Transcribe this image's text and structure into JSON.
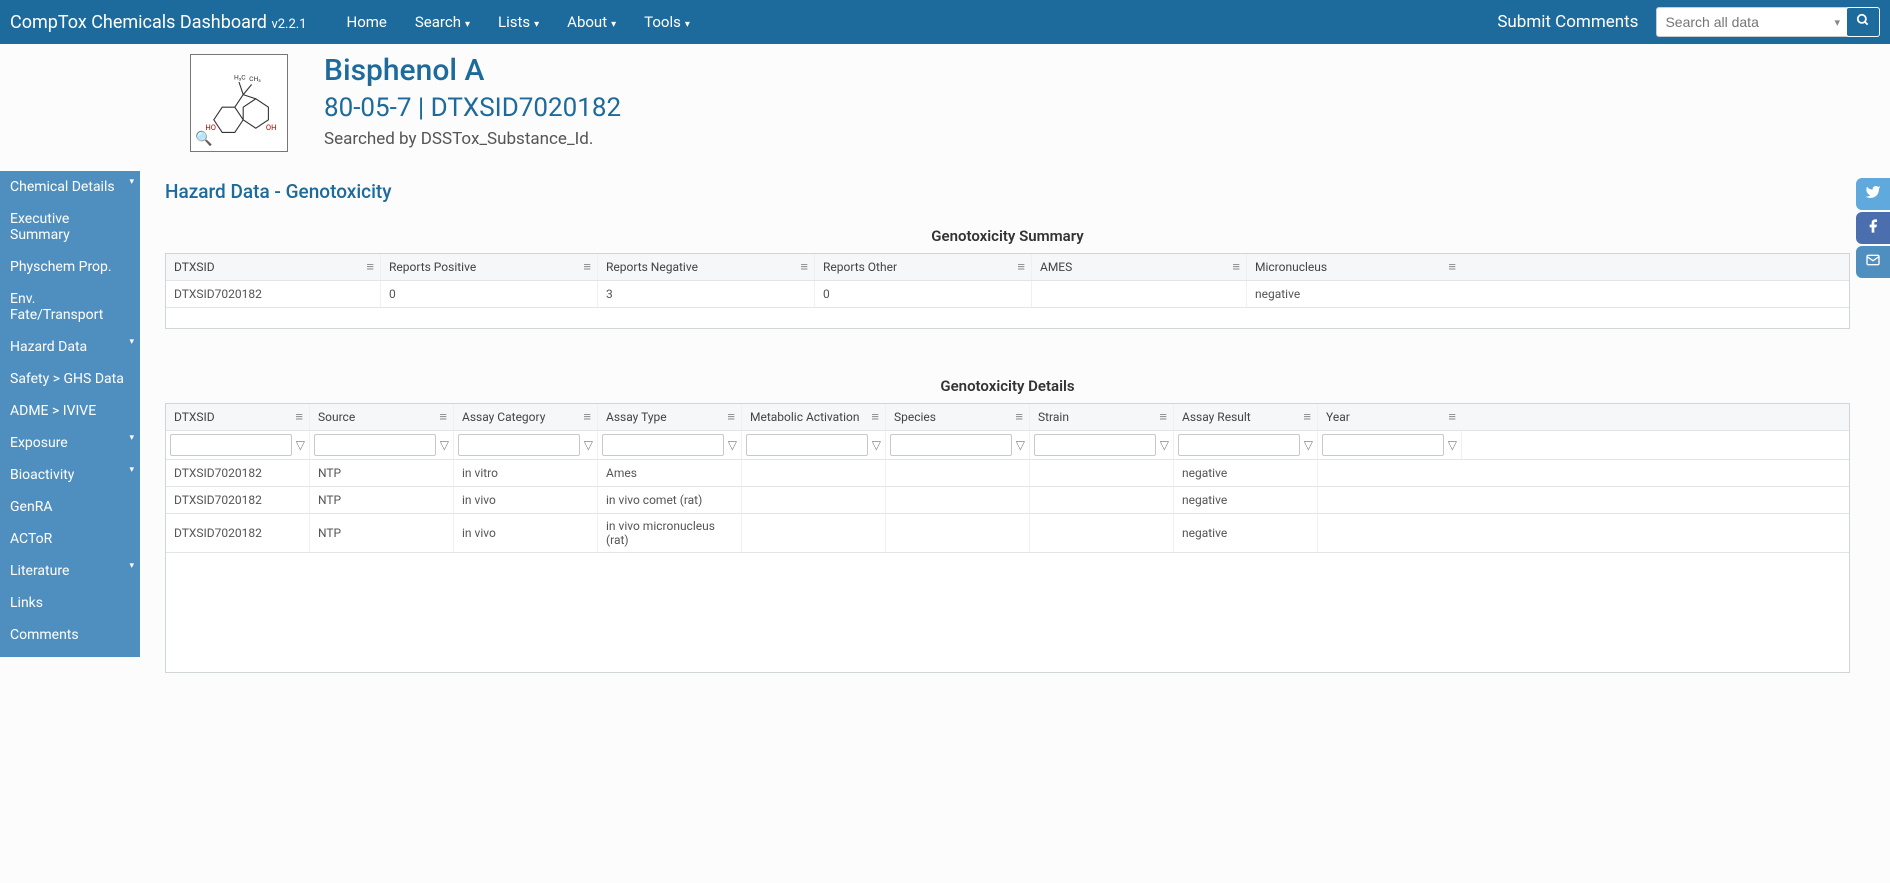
{
  "brand": {
    "title": "CompTox Chemicals Dashboard",
    "version": "v2.2.1"
  },
  "nav": {
    "items": [
      {
        "label": "Home",
        "caret": false
      },
      {
        "label": "Search",
        "caret": true
      },
      {
        "label": "Lists",
        "caret": true
      },
      {
        "label": "About",
        "caret": true
      },
      {
        "label": "Tools",
        "caret": true
      }
    ],
    "submit": "Submit Comments",
    "search_placeholder": "Search all data"
  },
  "chemical": {
    "name": "Bisphenol A",
    "id_line": "80-05-7 | DTXSID7020182",
    "searched_by": "Searched by DSSTox_Substance_Id."
  },
  "sidebar": {
    "items": [
      {
        "label": "Chemical Details",
        "expandable": true
      },
      {
        "label": "Executive Summary",
        "expandable": false
      },
      {
        "label": "Physchem Prop.",
        "expandable": false
      },
      {
        "label": "Env. Fate/Transport",
        "expandable": false
      },
      {
        "label": "Hazard Data",
        "expandable": true
      },
      {
        "label": "Safety > GHS Data",
        "expandable": false
      },
      {
        "label": "ADME > IVIVE",
        "expandable": false
      },
      {
        "label": "Exposure",
        "expandable": true
      },
      {
        "label": "Bioactivity",
        "expandable": true
      },
      {
        "label": "GenRA",
        "expandable": false
      },
      {
        "label": "ACToR",
        "expandable": false
      },
      {
        "label": "Literature",
        "expandable": true
      },
      {
        "label": "Links",
        "expandable": false
      },
      {
        "label": "Comments",
        "expandable": false
      }
    ]
  },
  "page": {
    "title": "Hazard Data - Genotoxicity"
  },
  "summary": {
    "title": "Genotoxicity Summary",
    "columns": [
      "DTXSID",
      "Reports Positive",
      "Reports Negative",
      "Reports Other",
      "AMES",
      "Micronucleus"
    ],
    "rows": [
      [
        "DTXSID7020182",
        "0",
        "3",
        "0",
        "",
        "negative"
      ]
    ]
  },
  "details": {
    "title": "Genotoxicity Details",
    "columns": [
      "DTXSID",
      "Source",
      "Assay Category",
      "Assay Type",
      "Metabolic Activation",
      "Species",
      "Strain",
      "Assay Result",
      "Year"
    ],
    "rows": [
      [
        "DTXSID7020182",
        "NTP",
        "in vitro",
        "Ames",
        "",
        "",
        "",
        "negative",
        ""
      ],
      [
        "DTXSID7020182",
        "NTP",
        "in vivo",
        "in vivo comet (rat)",
        "",
        "",
        "",
        "negative",
        ""
      ],
      [
        "DTXSID7020182",
        "NTP",
        "in vivo",
        "in vivo micronucleus (rat)",
        "",
        "",
        "",
        "negative",
        ""
      ]
    ]
  },
  "colors": {
    "navbar_bg": "#1d6b9c",
    "sidebar_bg": "#4f8fbf",
    "accent": "#1d6b9c",
    "social": {
      "twitter": "#5fa9dd",
      "facebook": "#4b6fae",
      "mail": "#4f8fbf"
    }
  }
}
